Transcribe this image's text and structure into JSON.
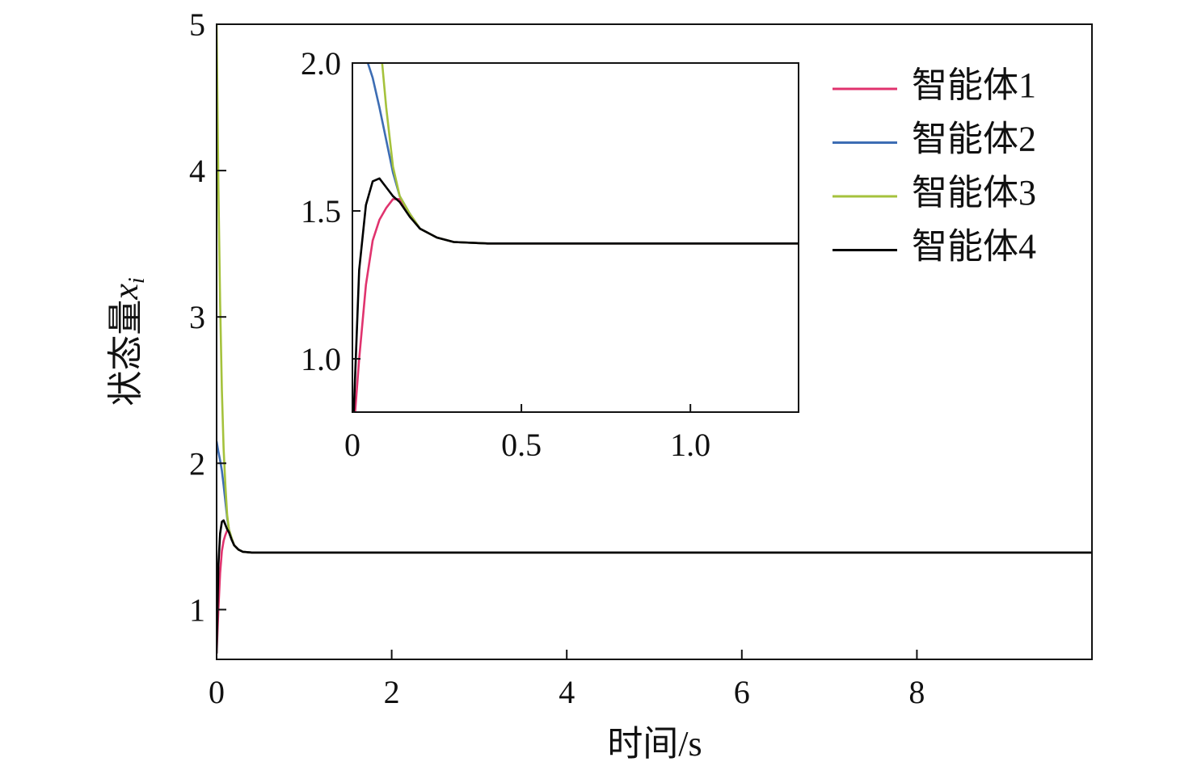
{
  "chart_data": {
    "type": "line",
    "xlabel": "时间/s",
    "ylabel": {
      "text": "状态量",
      "var": "x",
      "sub": "i"
    },
    "x": [
      0,
      0.02,
      0.04,
      0.06,
      0.08,
      0.1,
      0.12,
      0.14,
      0.17,
      0.2,
      0.25,
      0.3,
      0.4,
      0.6,
      1,
      2,
      4,
      6,
      8,
      10
    ],
    "series": [
      {
        "name": "智能体1",
        "color": "#e0336e",
        "values": [
          0.7,
          1.0,
          1.25,
          1.4,
          1.47,
          1.51,
          1.54,
          1.54,
          1.49,
          1.44,
          1.41,
          1.395,
          1.39,
          1.39,
          1.39,
          1.39,
          1.39,
          1.39,
          1.39,
          1.39
        ]
      },
      {
        "name": "智能体2",
        "color": "#3d6db3",
        "values": [
          2.15,
          2.08,
          2.02,
          1.95,
          1.85,
          1.74,
          1.63,
          1.55,
          1.49,
          1.44,
          1.41,
          1.395,
          1.39,
          1.39,
          1.39,
          1.39,
          1.39,
          1.39,
          1.39,
          1.39
        ]
      },
      {
        "name": "智能体3",
        "color": "#a5c23c",
        "values": [
          5,
          3.9,
          3.1,
          2.5,
          2.1,
          1.85,
          1.65,
          1.55,
          1.49,
          1.44,
          1.41,
          1.395,
          1.39,
          1.39,
          1.39,
          1.39,
          1.39,
          1.39,
          1.39,
          1.39
        ]
      },
      {
        "name": "智能体4",
        "color": "#000000",
        "values": [
          0.7,
          1.3,
          1.52,
          1.6,
          1.61,
          1.58,
          1.55,
          1.53,
          1.48,
          1.44,
          1.41,
          1.395,
          1.39,
          1.39,
          1.39,
          1.39,
          1.39,
          1.39,
          1.39,
          1.39
        ]
      }
    ],
    "xlim": [
      0,
      10
    ],
    "ylim": [
      0.66,
      5
    ],
    "xticks": [
      0,
      2,
      4,
      6,
      8
    ],
    "yticks": [
      1,
      2,
      3,
      4,
      5
    ],
    "legend": "upper right",
    "inset": {
      "xlim": [
        0,
        1.32
      ],
      "ylim": [
        0.82,
        2.0
      ],
      "xticks": [
        0,
        0.5,
        {
          "value": 1,
          "label": "1.0"
        }
      ],
      "yticks": [
        {
          "value": 1,
          "label": "1.0"
        },
        1.5,
        {
          "value": 2,
          "label": "2.0"
        }
      ]
    }
  }
}
